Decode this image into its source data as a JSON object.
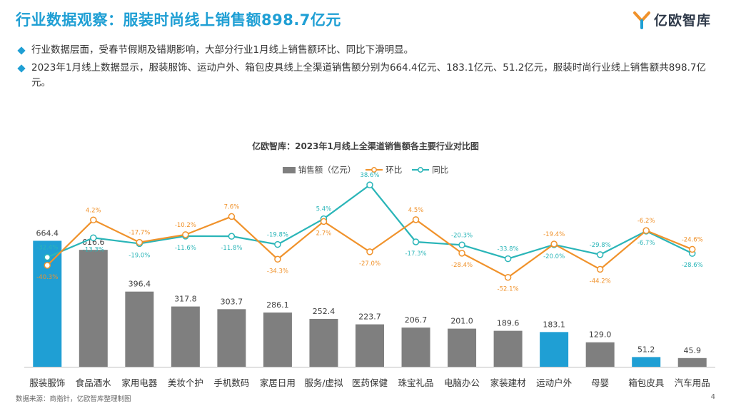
{
  "header": {
    "title": "行业数据观察：服装时尚线上销售额898.7亿元",
    "logo_text": "亿欧智库"
  },
  "bullets": [
    "行业数据层面，受春节假期及错期影响，大部分行业1月线上销售额环比、同比下滑明显。",
    "2023年1月线上数据显示，服装服饰、运动户外、箱包皮具线上全渠道销售额分别为664.4亿元、183.1亿元、51.2亿元，服装时尚行业线上销售额共898.7亿元。"
  ],
  "footer": {
    "source": "数据来源：商指针，亿欧智库整理制图",
    "page": "4"
  },
  "colors": {
    "accent": "#1f9fd4",
    "bar_gray": "#7f7f7f",
    "bar_blue": "#1f9fd4",
    "mom": "#f0922b",
    "yoy": "#2ab5b8"
  },
  "chart_data": {
    "type": "bar",
    "title": "亿欧智库：2023年1月线上全渠道销售额各主要行业对比图",
    "legend": [
      "销售额（亿元）",
      "环比",
      "同比"
    ],
    "categories": [
      "服装服饰",
      "食品酒水",
      "家用电器",
      "美妆个护",
      "手机数码",
      "家居日用",
      "服务/虚拟",
      "医药保健",
      "珠宝礼品",
      "电脑办公",
      "家装建材",
      "运动户外",
      "母婴",
      "箱包皮具",
      "汽车用品"
    ],
    "highlight": [
      "服装服饰",
      "运动户外",
      "箱包皮具"
    ],
    "series": [
      {
        "name": "销售额（亿元）",
        "type": "bar",
        "values": [
          664.4,
          616.6,
          396.4,
          317.8,
          303.7,
          286.1,
          252.4,
          223.7,
          206.7,
          201.0,
          189.6,
          183.1,
          129.0,
          51.2,
          45.9
        ],
        "labels": [
          "664.4",
          "616.6",
          "396.4",
          "317.8",
          "303.7",
          "286.1",
          "252.4",
          "223.7",
          "206.7",
          "201.0",
          "189.6",
          "183.1",
          "129.0",
          "51.2",
          "45.9"
        ]
      },
      {
        "name": "环比",
        "type": "line",
        "values": [
          -40.3,
          4.2,
          -17.7,
          -10.2,
          7.6,
          -34.3,
          2.7,
          -27.0,
          4.5,
          -28.4,
          -52.1,
          -19.4,
          -44.2,
          -6.2,
          -24.6
        ],
        "labels": [
          "-40.3%",
          "4.2%",
          "-17.7%",
          "-10.2%",
          "7.6%",
          "-34.3%",
          "2.7%",
          "-27.0%",
          "4.5%",
          "-28.4%",
          "-52.1%",
          "-19.4%",
          "-44.2%",
          "-6.2%",
          "-24.6%"
        ]
      },
      {
        "name": "同比",
        "type": "line",
        "values": [
          -32.4,
          -13.3,
          -19.0,
          -11.6,
          -11.8,
          -19.8,
          5.4,
          38.6,
          -17.3,
          -20.3,
          -33.8,
          -20.0,
          -29.8,
          -6.7,
          -28.6
        ],
        "labels": [
          "-32.4%",
          "-13.3%",
          "-19.0%",
          "-11.6%",
          "-11.8%",
          "-19.8%",
          "5.4%",
          "38.6%",
          "-17.3%",
          "-20.3%",
          "-33.8%",
          "-20.0%",
          "-29.8%",
          "-6.7%",
          "-28.6%"
        ]
      }
    ],
    "ylim_bar": [
      0,
      700
    ],
    "ylim_line": [
      -60,
      45
    ]
  }
}
